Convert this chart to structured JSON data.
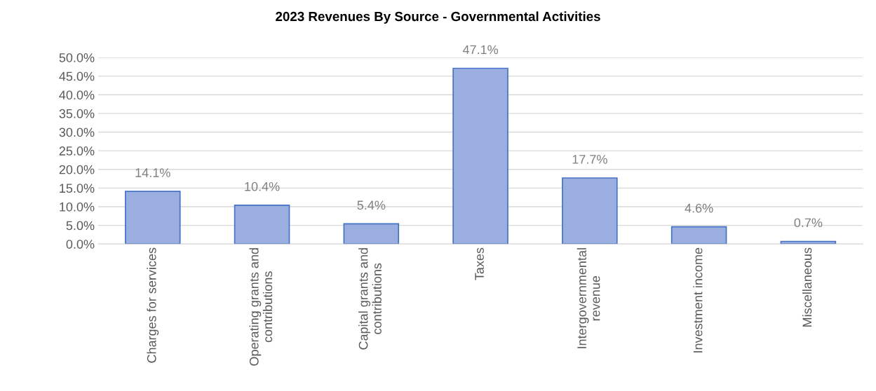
{
  "chart_data": {
    "type": "bar",
    "title": "2023 Revenues By Source - Governmental Activities",
    "categories": [
      "Charges for services",
      "Operating grants and contributions",
      "Capital grants and contributions",
      "Taxes",
      "Intergovernmental revenue",
      "Investment income",
      "Miscellaneous"
    ],
    "values": [
      14.1,
      10.4,
      5.4,
      47.1,
      17.7,
      4.6,
      0.7
    ],
    "value_labels": [
      "14.1%",
      "10.4%",
      "5.4%",
      "47.1%",
      "17.7%",
      "4.6%",
      "0.7%"
    ],
    "color": "#9aaee0",
    "ylim": [
      0,
      50
    ],
    "yticks": [
      {
        "value": 0,
        "label": "0.0%"
      },
      {
        "value": 5,
        "label": "5.0%"
      },
      {
        "value": 10,
        "label": "10.0%"
      },
      {
        "value": 15,
        "label": "15.0%"
      },
      {
        "value": 20,
        "label": "20.0%"
      },
      {
        "value": 25,
        "label": "25.0%"
      },
      {
        "value": 30,
        "label": "30.0%"
      },
      {
        "value": 35,
        "label": "35.0%"
      },
      {
        "value": 40,
        "label": "40.0%"
      },
      {
        "value": 45,
        "label": "45.0%"
      },
      {
        "value": 50,
        "label": "50.0%"
      }
    ],
    "grid": "y",
    "legend": false
  }
}
